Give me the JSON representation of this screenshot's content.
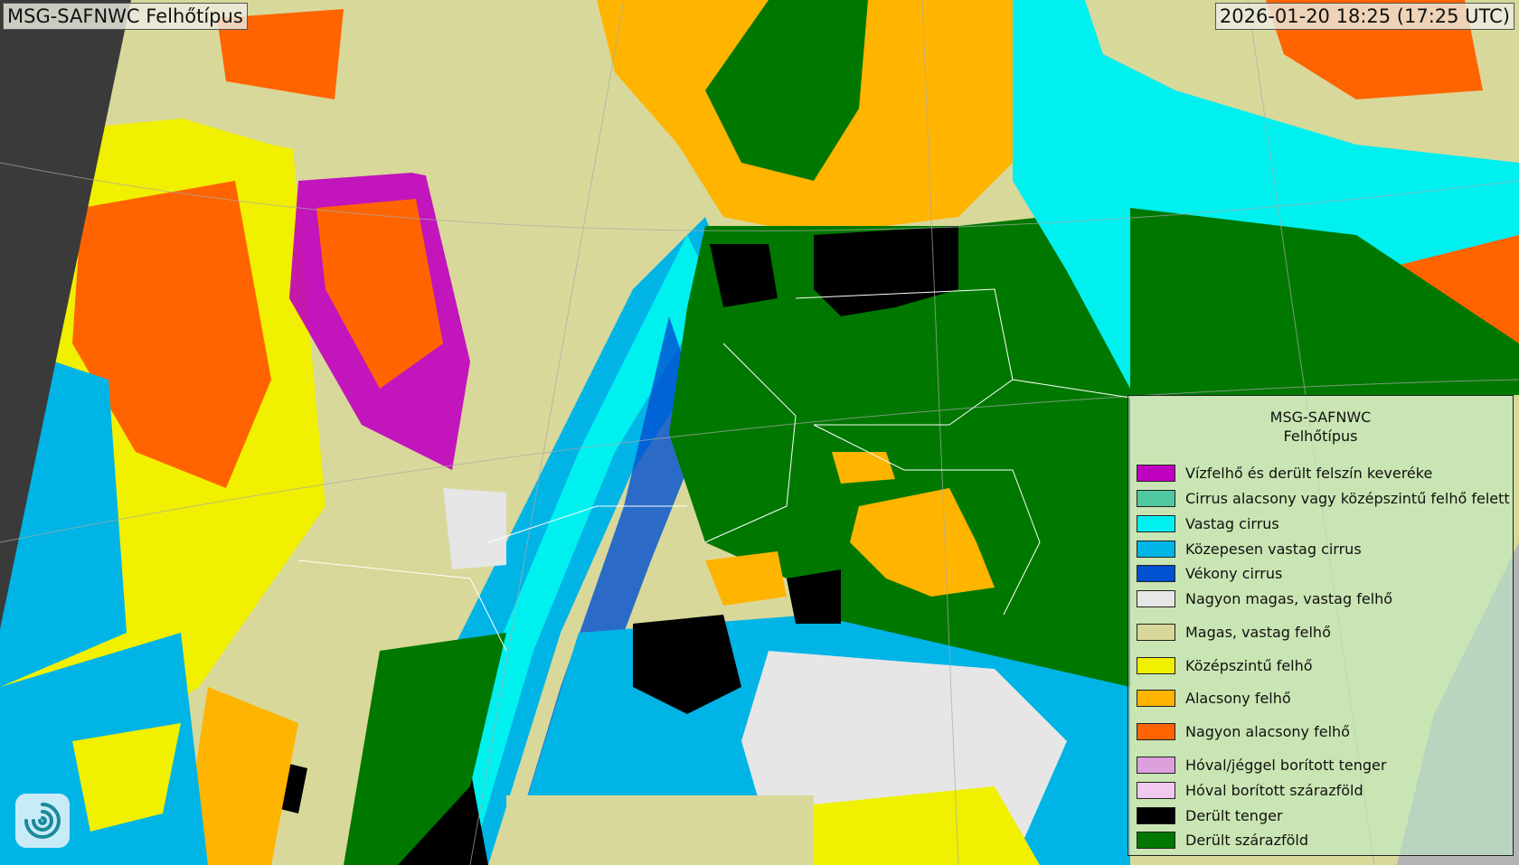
{
  "header": {
    "title": "MSG-SAFNWC Felhőtípus",
    "timestamp": "2026-01-20 18:25 (17:25 UTC)"
  },
  "legend": {
    "title_line1": "MSG-SAFNWC",
    "title_line2": "Felhőtípus",
    "items": [
      {
        "label": "Vízfelhő és derült felszín keveréke",
        "color": "#c000c0"
      },
      {
        "label": "Cirrus alacsony vagy középszintű felhő felett",
        "color": "#50c8a0"
      },
      {
        "label": "Vastag cirrus",
        "color": "#00f0f0"
      },
      {
        "label": "Közepesen vastag cirrus",
        "color": "#00b4e6"
      },
      {
        "label": "Vékony cirrus",
        "color": "#0050d2"
      },
      {
        "label": "Nagyon magas, vastag felhő",
        "color": "#e6e6e6"
      },
      {
        "label": "Magas, vastag felhő",
        "color": "#d8d89a"
      },
      {
        "label": "Középszintű felhő",
        "color": "#f0f000"
      },
      {
        "label": "Alacsony felhő",
        "color": "#ffb400"
      },
      {
        "label": "Nagyon alacsony felhő",
        "color": "#ff6400"
      },
      {
        "label": "Hóval/jéggel borított tenger",
        "color": "#dca0dc"
      },
      {
        "label": "Hóval borított szárazföld",
        "color": "#f0c8f0"
      },
      {
        "label": "Derült tenger",
        "color": "#000000"
      },
      {
        "label": "Derült szárazföld",
        "color": "#007800"
      }
    ]
  },
  "colors": {
    "outside_disk_left": "#3a3a3a",
    "no_data_right": "#b4b4b4",
    "borders": "#ffffff"
  }
}
